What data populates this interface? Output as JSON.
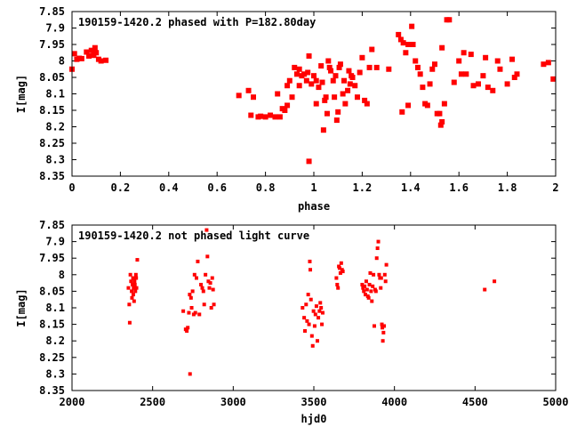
{
  "colors": {
    "marker": "#ff0000",
    "axis": "#000000",
    "background": "#ffffff"
  },
  "chart_data": [
    {
      "type": "scatter",
      "title": "190159-1420.2 phased with P=182.80day",
      "xlabel": "phase",
      "ylabel": "I[mag]",
      "xlim": [
        0,
        2
      ],
      "ylim": [
        8.35,
        7.85
      ],
      "y_inverted": true,
      "x_ticks": [
        "0",
        "0.2",
        "0.4",
        "0.6",
        "0.8",
        "1",
        "1.2",
        "1.4",
        "1.6",
        "1.8",
        "2"
      ],
      "y_ticks": [
        "7.85",
        "7.9",
        "7.95",
        "8",
        "8.05",
        "8.1",
        "8.15",
        "8.2",
        "8.25",
        "8.3",
        "8.35"
      ],
      "grid": false,
      "legend": "none",
      "marker": "filled square",
      "points": [
        [
          0.0,
          8.025
        ],
        [
          0.01,
          7.978
        ],
        [
          0.02,
          7.995
        ],
        [
          0.03,
          7.992
        ],
        [
          0.04,
          7.993
        ],
        [
          0.06,
          7.973
        ],
        [
          0.07,
          7.985
        ],
        [
          0.08,
          7.968
        ],
        [
          0.09,
          7.983
        ],
        [
          0.095,
          7.96
        ],
        [
          0.1,
          7.975
        ],
        [
          0.11,
          7.995
        ],
        [
          0.12,
          8.0
        ],
        [
          0.14,
          7.998
        ],
        [
          0.69,
          8.105
        ],
        [
          0.73,
          8.09
        ],
        [
          0.74,
          8.165
        ],
        [
          0.75,
          8.11
        ],
        [
          0.77,
          8.17
        ],
        [
          0.78,
          8.168
        ],
        [
          0.8,
          8.17
        ],
        [
          0.82,
          8.165
        ],
        [
          0.84,
          8.17
        ],
        [
          0.85,
          8.1
        ],
        [
          0.86,
          8.17
        ],
        [
          0.87,
          8.145
        ],
        [
          0.88,
          8.15
        ],
        [
          0.89,
          8.135
        ],
        [
          0.89,
          8.075
        ],
        [
          0.9,
          8.06
        ],
        [
          0.91,
          8.11
        ],
        [
          0.92,
          8.02
        ],
        [
          0.93,
          8.04
        ],
        [
          0.94,
          8.025
        ],
        [
          0.94,
          8.075
        ],
        [
          0.95,
          8.045
        ],
        [
          0.96,
          8.04
        ],
        [
          0.97,
          8.06
        ],
        [
          0.975,
          8.035
        ],
        [
          0.98,
          7.985
        ],
        [
          0.98,
          8.305
        ],
        [
          0.99,
          8.07
        ],
        [
          1.0,
          8.045
        ],
        [
          1.01,
          8.13
        ],
        [
          1.01,
          8.06
        ],
        [
          1.02,
          8.08
        ],
        [
          1.03,
          8.015
        ],
        [
          1.035,
          8.065
        ],
        [
          1.04,
          8.21
        ],
        [
          1.045,
          8.12
        ],
        [
          1.05,
          8.11
        ],
        [
          1.055,
          8.16
        ],
        [
          1.06,
          8.0
        ],
        [
          1.065,
          8.02
        ],
        [
          1.07,
          8.03
        ],
        [
          1.08,
          8.06
        ],
        [
          1.085,
          8.11
        ],
        [
          1.09,
          8.045
        ],
        [
          1.095,
          8.18
        ],
        [
          1.1,
          8.155
        ],
        [
          1.105,
          8.02
        ],
        [
          1.11,
          8.01
        ],
        [
          1.12,
          8.1
        ],
        [
          1.125,
          8.06
        ],
        [
          1.13,
          8.13
        ],
        [
          1.14,
          8.09
        ],
        [
          1.145,
          8.03
        ],
        [
          1.15,
          8.07
        ],
        [
          1.155,
          8.045
        ],
        [
          1.16,
          8.05
        ],
        [
          1.17,
          8.075
        ],
        [
          1.18,
          8.11
        ],
        [
          1.19,
          8.035
        ],
        [
          1.2,
          7.99
        ],
        [
          1.21,
          8.12
        ],
        [
          1.22,
          8.13
        ],
        [
          1.23,
          8.02
        ],
        [
          1.24,
          7.965
        ],
        [
          1.26,
          8.02
        ],
        [
          1.31,
          8.025
        ],
        [
          1.35,
          7.92
        ],
        [
          1.36,
          7.935
        ],
        [
          1.37,
          7.945
        ],
        [
          1.38,
          7.975
        ],
        [
          1.39,
          7.95
        ],
        [
          1.4,
          7.95
        ],
        [
          1.405,
          7.895
        ],
        [
          1.41,
          7.95
        ],
        [
          1.365,
          8.155
        ],
        [
          1.39,
          8.135
        ],
        [
          1.42,
          8.0
        ],
        [
          1.43,
          8.02
        ],
        [
          1.44,
          8.04
        ],
        [
          1.45,
          8.08
        ],
        [
          1.46,
          8.13
        ],
        [
          1.47,
          8.135
        ],
        [
          1.48,
          8.07
        ],
        [
          1.49,
          8.025
        ],
        [
          1.5,
          8.01
        ],
        [
          1.51,
          8.16
        ],
        [
          1.52,
          8.16
        ],
        [
          1.525,
          8.195
        ],
        [
          1.53,
          8.185
        ],
        [
          1.53,
          7.96
        ],
        [
          1.54,
          8.13
        ],
        [
          1.55,
          7.875
        ],
        [
          1.56,
          7.875
        ],
        [
          1.58,
          8.065
        ],
        [
          1.6,
          8.0
        ],
        [
          1.61,
          8.04
        ],
        [
          1.62,
          7.975
        ],
        [
          1.63,
          8.04
        ],
        [
          1.65,
          7.98
        ],
        [
          1.66,
          8.075
        ],
        [
          1.68,
          8.07
        ],
        [
          1.7,
          8.045
        ],
        [
          1.71,
          7.99
        ],
        [
          1.72,
          8.08
        ],
        [
          1.74,
          8.09
        ],
        [
          1.76,
          8.0
        ],
        [
          1.77,
          8.025
        ],
        [
          1.8,
          8.07
        ],
        [
          1.82,
          7.995
        ],
        [
          1.83,
          8.05
        ],
        [
          1.84,
          8.04
        ],
        [
          1.95,
          8.01
        ],
        [
          1.97,
          8.005
        ],
        [
          1.99,
          8.055
        ]
      ]
    },
    {
      "type": "scatter",
      "title": "190159-1420.2 not phased light curve",
      "xlabel": "hjd0",
      "ylabel": "I[mag]",
      "xlim": [
        2000,
        5000
      ],
      "ylim": [
        8.35,
        7.85
      ],
      "y_inverted": true,
      "x_ticks": [
        "2000",
        "2500",
        "3000",
        "3500",
        "4000",
        "4500",
        "5000"
      ],
      "y_ticks": [
        "7.85",
        "7.9",
        "7.95",
        "8",
        "8.05",
        "8.1",
        "8.15",
        "8.2",
        "8.25",
        "8.3",
        "8.35"
      ],
      "grid": false,
      "legend": "none",
      "marker": "small filled square",
      "points": [
        [
          2350,
          8.04
        ],
        [
          2355,
          8.09
        ],
        [
          2358,
          8.145
        ],
        [
          2362,
          8.0
        ],
        [
          2366,
          8.02
        ],
        [
          2370,
          8.05
        ],
        [
          2372,
          8.07
        ],
        [
          2375,
          8.03
        ],
        [
          2378,
          8.01
        ],
        [
          2380,
          8.06
        ],
        [
          2382,
          8.04
        ],
        [
          2385,
          8.08
        ],
        [
          2388,
          8.02
        ],
        [
          2390,
          8.03
        ],
        [
          2393,
          8.05
        ],
        [
          2396,
          8.0
        ],
        [
          2398,
          8.01
        ],
        [
          2400,
          8.04
        ],
        [
          2405,
          7.955
        ],
        [
          2690,
          8.11
        ],
        [
          2705,
          8.165
        ],
        [
          2712,
          8.17
        ],
        [
          2718,
          8.16
        ],
        [
          2725,
          8.115
        ],
        [
          2730,
          8.06
        ],
        [
          2732,
          8.3
        ],
        [
          2738,
          8.07
        ],
        [
          2742,
          8.1
        ],
        [
          2748,
          8.05
        ],
        [
          2755,
          8.12
        ],
        [
          2760,
          8.0
        ],
        [
          2765,
          8.115
        ],
        [
          2772,
          8.01
        ],
        [
          2780,
          7.96
        ],
        [
          2790,
          8.12
        ],
        [
          2800,
          8.03
        ],
        [
          2808,
          8.04
        ],
        [
          2815,
          8.05
        ],
        [
          2820,
          8.09
        ],
        [
          2828,
          8.0
        ],
        [
          2835,
          7.865
        ],
        [
          2840,
          7.945
        ],
        [
          2846,
          8.02
        ],
        [
          2852,
          8.04
        ],
        [
          2858,
          8.025
        ],
        [
          2864,
          8.1
        ],
        [
          2870,
          8.01
        ],
        [
          2875,
          8.045
        ],
        [
          2880,
          8.09
        ],
        [
          3430,
          8.1
        ],
        [
          3440,
          8.13
        ],
        [
          3445,
          8.17
        ],
        [
          3452,
          8.09
        ],
        [
          3458,
          8.14
        ],
        [
          3465,
          8.06
        ],
        [
          3470,
          8.15
        ],
        [
          3475,
          7.96
        ],
        [
          3478,
          7.985
        ],
        [
          3482,
          8.075
        ],
        [
          3488,
          8.185
        ],
        [
          3493,
          8.215
        ],
        [
          3498,
          8.11
        ],
        [
          3505,
          8.155
        ],
        [
          3510,
          8.12
        ],
        [
          3516,
          8.095
        ],
        [
          3522,
          8.2
        ],
        [
          3528,
          8.13
        ],
        [
          3535,
          8.11
        ],
        [
          3540,
          8.085
        ],
        [
          3545,
          8.1
        ],
        [
          3550,
          8.15
        ],
        [
          3555,
          8.115
        ],
        [
          3640,
          8.01
        ],
        [
          3645,
          8.03
        ],
        [
          3650,
          8.04
        ],
        [
          3655,
          7.975
        ],
        [
          3660,
          7.98
        ],
        [
          3665,
          7.995
        ],
        [
          3670,
          7.965
        ],
        [
          3675,
          7.985
        ],
        [
          3680,
          7.99
        ],
        [
          3800,
          8.03
        ],
        [
          3805,
          8.04
        ],
        [
          3810,
          8.05
        ],
        [
          3815,
          8.035
        ],
        [
          3820,
          8.06
        ],
        [
          3825,
          8.02
        ],
        [
          3830,
          8.045
        ],
        [
          3835,
          8.065
        ],
        [
          3840,
          8.07
        ],
        [
          3845,
          8.03
        ],
        [
          3850,
          7.995
        ],
        [
          3855,
          8.05
        ],
        [
          3860,
          8.08
        ],
        [
          3865,
          8.035
        ],
        [
          3870,
          8.0
        ],
        [
          3875,
          8.155
        ],
        [
          3880,
          8.045
        ],
        [
          3885,
          8.05
        ],
        [
          3890,
          7.95
        ],
        [
          3895,
          7.92
        ],
        [
          3900,
          7.9
        ],
        [
          3905,
          8.0
        ],
        [
          3910,
          8.01
        ],
        [
          3915,
          8.04
        ],
        [
          3918,
          8.01
        ],
        [
          3922,
          8.15
        ],
        [
          3925,
          8.16
        ],
        [
          3928,
          8.2
        ],
        [
          3932,
          8.175
        ],
        [
          3936,
          8.155
        ],
        [
          3940,
          8.0
        ],
        [
          3945,
          8.02
        ],
        [
          3950,
          7.97
        ],
        [
          4560,
          8.045
        ],
        [
          4620,
          8.02
        ]
      ]
    }
  ]
}
